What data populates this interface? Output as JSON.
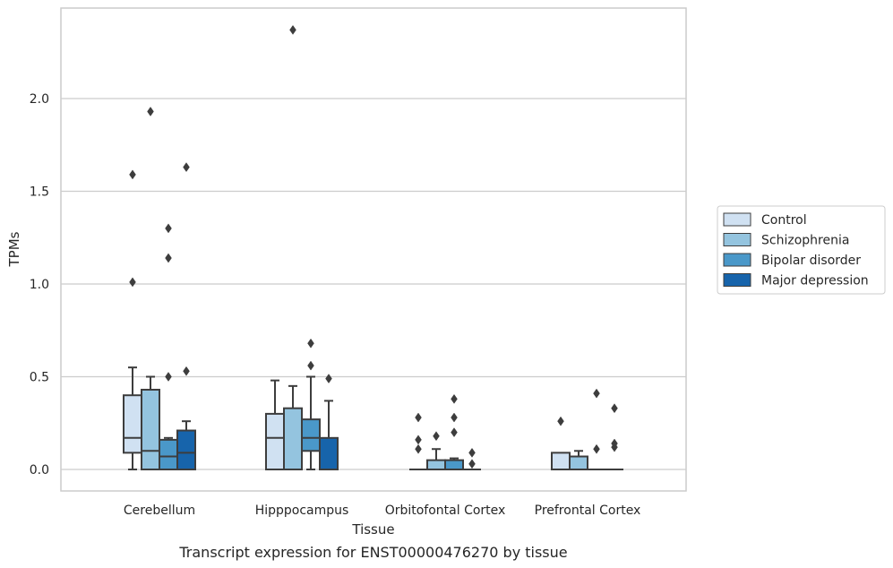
{
  "chart_data": {
    "type": "box",
    "title": "",
    "xlabel": "Tissue",
    "ylabel": "TPMs",
    "caption": "Transcript expression for ENST00000476270 by tissue",
    "ylim": [
      -0.115,
      2.49
    ],
    "yticks": [
      0.0,
      0.5,
      1.0,
      1.5,
      2.0
    ],
    "ytick_labels": [
      "0.0",
      "0.5",
      "1.0",
      "1.5",
      "2.0"
    ],
    "grid": "horizontal",
    "legend_position": "right",
    "categories": [
      "Cerebellum",
      "Hipppocampus",
      "Orbitofontal Cortex",
      "Prefrontal Cortex"
    ],
    "series": [
      {
        "name": "Control",
        "color": "#d0e1f2",
        "boxes": [
          {
            "whislo": 0.0,
            "q1": 0.09,
            "med": 0.17,
            "q3": 0.4,
            "whishi": 0.55,
            "fliers": [
              1.01,
              1.59
            ]
          },
          {
            "whislo": 0.0,
            "q1": 0.0,
            "med": 0.17,
            "q3": 0.3,
            "whishi": 0.48,
            "fliers": []
          },
          {
            "whislo": 0.0,
            "q1": 0.0,
            "med": 0.0,
            "q3": 0.0,
            "whishi": 0.0,
            "fliers": [
              0.11,
              0.16,
              0.28
            ]
          },
          {
            "whislo": 0.0,
            "q1": 0.0,
            "med": 0.0,
            "q3": 0.09,
            "whishi": 0.09,
            "fliers": [
              0.26
            ]
          }
        ]
      },
      {
        "name": "Schizophrenia",
        "color": "#94c4df",
        "boxes": [
          {
            "whislo": 0.0,
            "q1": 0.0,
            "med": 0.1,
            "q3": 0.43,
            "whishi": 0.5,
            "fliers": [
              1.93
            ]
          },
          {
            "whislo": 0.0,
            "q1": 0.0,
            "med": 0.0,
            "q3": 0.33,
            "whishi": 0.45,
            "fliers": [
              2.37
            ]
          },
          {
            "whislo": 0.0,
            "q1": 0.0,
            "med": 0.0,
            "q3": 0.05,
            "whishi": 0.11,
            "fliers": [
              0.18
            ]
          },
          {
            "whislo": 0.0,
            "q1": 0.0,
            "med": 0.0,
            "q3": 0.07,
            "whishi": 0.1,
            "fliers": []
          }
        ]
      },
      {
        "name": "Bipolar disorder",
        "color": "#4a98c9",
        "boxes": [
          {
            "whislo": 0.0,
            "q1": 0.0,
            "med": 0.07,
            "q3": 0.16,
            "whishi": 0.17,
            "fliers": [
              0.5,
              1.14,
              1.3
            ]
          },
          {
            "whislo": 0.0,
            "q1": 0.1,
            "med": 0.17,
            "q3": 0.27,
            "whishi": 0.5,
            "fliers": [
              0.56,
              0.68
            ]
          },
          {
            "whislo": 0.0,
            "q1": 0.0,
            "med": 0.0,
            "q3": 0.05,
            "whishi": 0.06,
            "fliers": [
              0.2,
              0.28,
              0.38
            ]
          },
          {
            "whislo": 0.0,
            "q1": 0.0,
            "med": 0.0,
            "q3": 0.0,
            "whishi": 0.0,
            "fliers": [
              0.11,
              0.41
            ]
          }
        ]
      },
      {
        "name": "Major depression",
        "color": "#1764ab",
        "boxes": [
          {
            "whislo": 0.0,
            "q1": 0.0,
            "med": 0.09,
            "q3": 0.21,
            "whishi": 0.26,
            "fliers": [
              0.53,
              1.63
            ]
          },
          {
            "whislo": 0.0,
            "q1": 0.0,
            "med": 0.0,
            "q3": 0.17,
            "whishi": 0.37,
            "fliers": [
              0.49
            ]
          },
          {
            "whislo": 0.0,
            "q1": 0.0,
            "med": 0.0,
            "q3": 0.0,
            "whishi": 0.0,
            "fliers": [
              0.03,
              0.09
            ]
          },
          {
            "whislo": 0.0,
            "q1": 0.0,
            "med": 0.0,
            "q3": 0.0,
            "whishi": 0.0,
            "fliers": [
              0.12,
              0.14,
              0.33
            ]
          }
        ]
      }
    ],
    "colors": {
      "axes_edge": "#cccccc",
      "grid": "#cccccc",
      "box_line": "#3d3d3d",
      "flier": "#3d3d3d",
      "text": "#262626"
    }
  }
}
